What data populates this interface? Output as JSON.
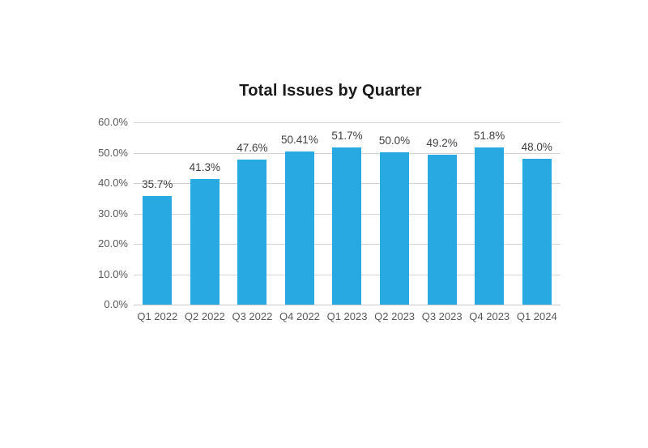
{
  "page": {
    "background_color": "#ffffff"
  },
  "chart_data": {
    "type": "bar",
    "title": "Total Issues by Quarter",
    "categories": [
      "Q1 2022",
      "Q2 2022",
      "Q3 2022",
      "Q4 2022",
      "Q1 2023",
      "Q2 2023",
      "Q3 2023",
      "Q4 2023",
      "Q1 2024"
    ],
    "values": [
      35.7,
      41.3,
      47.6,
      50.41,
      51.7,
      50.0,
      49.2,
      51.8,
      48.0
    ],
    "data_labels": [
      "35.7%",
      "41.3%",
      "47.6%",
      "50.41%",
      "51.7%",
      "50.0%",
      "49.2%",
      "51.8%",
      "48.0%"
    ],
    "xlabel": "",
    "ylabel": "",
    "ylim": [
      0,
      60
    ],
    "y_tick_labels": [
      "60.0%",
      "50.0%",
      "40.0%",
      "30.0%",
      "20.0%",
      "10.0%",
      "0.0%"
    ],
    "grid": true,
    "legend": "none",
    "colors": {
      "bar": "#29A9E1",
      "gridline": "#D4D4D4",
      "baseline": "#C6C6C6",
      "title": "#1A1A1A",
      "axis_labels": "#595959",
      "data_labels": "#404040"
    }
  }
}
